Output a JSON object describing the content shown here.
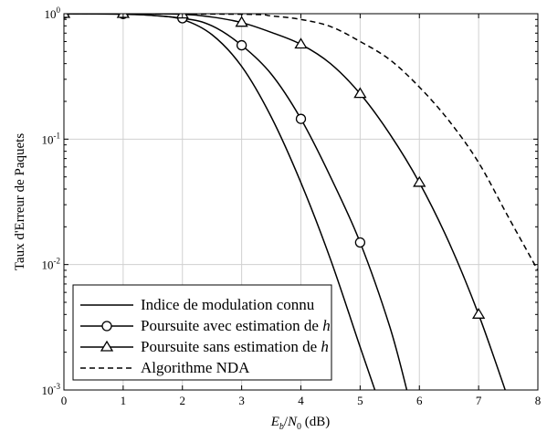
{
  "chart_data": {
    "type": "line",
    "title": "",
    "xlabel_parts": {
      "E": "E",
      "b": "b",
      "slash": "/",
      "N": "N",
      "zero": "0",
      "unit": " (dB)"
    },
    "ylabel": "Taux d'Erreur de Paquets",
    "x_ticks": [
      "0",
      "1",
      "2",
      "3",
      "4",
      "5",
      "6",
      "7",
      "8"
    ],
    "y_ticks": [
      {
        "base": "10",
        "exp": "0"
      },
      {
        "base": "10",
        "exp": "-1"
      },
      {
        "base": "10",
        "exp": "-2"
      },
      {
        "base": "10",
        "exp": "-3"
      }
    ],
    "xlim": [
      0,
      8
    ],
    "ylim": [
      0.001,
      1
    ],
    "y_scale": "log",
    "grid": true,
    "legend_position": "bottom-left",
    "series": [
      {
        "name": "Indice de modulation connu",
        "style": "solid",
        "marker": "none",
        "x": [
          0,
          1,
          1.5,
          2,
          2.5,
          3,
          3.5,
          4,
          4.5,
          5,
          5.3
        ],
        "y": [
          1.0,
          0.99,
          0.97,
          0.9,
          0.68,
          0.38,
          0.15,
          0.045,
          0.011,
          0.0022,
          0.00085
        ]
      },
      {
        "name": "Poursuite avec estimation de h",
        "style": "solid",
        "marker": "circle",
        "x": [
          0,
          1,
          2,
          2.5,
          3,
          3.5,
          4,
          4.5,
          5,
          5.5,
          5.8
        ],
        "y": [
          1.0,
          0.995,
          0.92,
          0.8,
          0.56,
          0.33,
          0.145,
          0.05,
          0.015,
          0.0032,
          0.00095
        ]
      },
      {
        "name": "Poursuite sans estimation de h",
        "style": "solid",
        "marker": "triangle",
        "x": [
          0,
          1,
          2,
          2.5,
          3,
          3.5,
          4,
          4.5,
          5,
          5.5,
          6,
          6.5,
          7,
          7.5
        ],
        "y": [
          1.0,
          1.0,
          0.99,
          0.94,
          0.85,
          0.71,
          0.57,
          0.4,
          0.23,
          0.11,
          0.045,
          0.015,
          0.004,
          0.00085
        ]
      },
      {
        "name": "Algorithme NDA",
        "style": "dashed",
        "marker": "none",
        "x": [
          0,
          3,
          3.5,
          4,
          4.5,
          5,
          5.5,
          6,
          6.5,
          7,
          7.5,
          8
        ],
        "y": [
          1.0,
          0.99,
          0.96,
          0.9,
          0.79,
          0.6,
          0.43,
          0.26,
          0.14,
          0.065,
          0.024,
          0.009
        ]
      }
    ],
    "marker_points": {
      "Poursuite avec estimation de h": {
        "x": [
          0,
          1,
          2,
          3,
          4,
          5
        ],
        "y": [
          1.0,
          0.995,
          0.92,
          0.56,
          0.145,
          0.015
        ]
      },
      "Poursuite sans estimation de h": {
        "x": [
          0,
          1,
          2,
          3,
          4,
          5,
          6,
          7
        ],
        "y": [
          1.0,
          1.0,
          0.99,
          0.85,
          0.57,
          0.23,
          0.045,
          0.004
        ]
      }
    }
  }
}
